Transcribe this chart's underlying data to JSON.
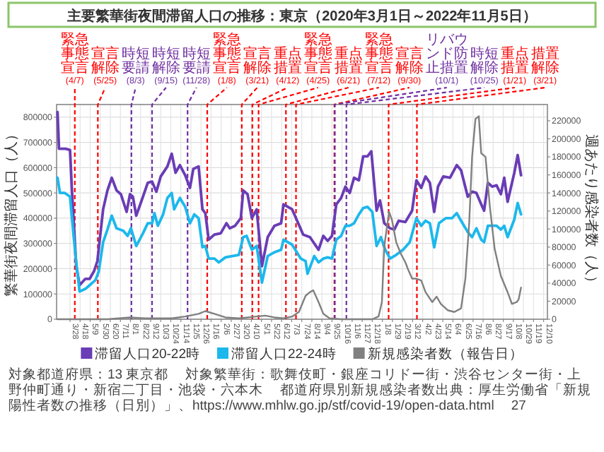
{
  "chart_data": {
    "type": "line",
    "title": "主要繁華街夜間滞留人口の推移：東京（2020年3月1日～2022年11月5日）",
    "ylabel": "繁華街夜間滞留人口（人）",
    "y2label": "週あたり感染者数（人）",
    "xlim": [
      "2020-02-29",
      "2022-12-18"
    ],
    "xticks": [
      {
        "value": "2020-03-28",
        "label": "3/28"
      },
      {
        "value": "2020-04-18",
        "label": "4/18"
      },
      {
        "value": "2020-05-09",
        "label": "5/9"
      },
      {
        "value": "2020-05-30",
        "label": "5/30"
      },
      {
        "value": "2020-06-20",
        "label": "6/20"
      },
      {
        "value": "2020-07-11",
        "label": "7/11"
      },
      {
        "value": "2020-08-01",
        "label": "8/1"
      },
      {
        "value": "2020-08-22",
        "label": "8/22"
      },
      {
        "value": "2020-09-12",
        "label": "9/12"
      },
      {
        "value": "2020-10-03",
        "label": "10/3"
      },
      {
        "value": "2020-10-24",
        "label": "10/24"
      },
      {
        "value": "2020-11-14",
        "label": "11/14"
      },
      {
        "value": "2020-12-05",
        "label": "12/5"
      },
      {
        "value": "2020-12-26",
        "label": "12/26"
      },
      {
        "value": "2021-01-16",
        "label": "1/16"
      },
      {
        "value": "2021-02-06",
        "label": "2/6"
      },
      {
        "value": "2021-02-27",
        "label": "2/27"
      },
      {
        "value": "2021-03-20",
        "label": "3/20"
      },
      {
        "value": "2021-04-10",
        "label": "4/10"
      },
      {
        "value": "2021-05-01",
        "label": "5/1"
      },
      {
        "value": "2021-05-22",
        "label": "5/22"
      },
      {
        "value": "2021-06-12",
        "label": "6/12"
      },
      {
        "value": "2021-07-03",
        "label": "7/3"
      },
      {
        "value": "2021-07-24",
        "label": "7/24"
      },
      {
        "value": "2021-08-14",
        "label": "8/14"
      },
      {
        "value": "2021-09-04",
        "label": "9/4"
      },
      {
        "value": "2021-09-25",
        "label": "9/25"
      },
      {
        "value": "2021-10-16",
        "label": "10/16"
      },
      {
        "value": "2021-11-06",
        "label": "11/6"
      },
      {
        "value": "2021-11-27",
        "label": "11/27"
      },
      {
        "value": "2021-12-18",
        "label": "12/18"
      },
      {
        "value": "2022-01-08",
        "label": "1/8"
      },
      {
        "value": "2022-01-29",
        "label": "1/29"
      },
      {
        "value": "2022-02-19",
        "label": "2/19"
      },
      {
        "value": "2022-03-12",
        "label": "3/12"
      },
      {
        "value": "2022-04-02",
        "label": "4/2"
      },
      {
        "value": "2022-04-23",
        "label": "4/23"
      },
      {
        "value": "2022-05-14",
        "label": "5/14"
      },
      {
        "value": "2022-06-04",
        "label": "6/4"
      },
      {
        "value": "2022-06-25",
        "label": "6/25"
      },
      {
        "value": "2022-07-16",
        "label": "7/16"
      },
      {
        "value": "2022-08-06",
        "label": "8/6"
      },
      {
        "value": "2022-08-27",
        "label": "8/27"
      },
      {
        "value": "2022-09-17",
        "label": "9/17"
      },
      {
        "value": "2022-10-08",
        "label": "10/8"
      },
      {
        "value": "2022-10-29",
        "label": "10/29"
      },
      {
        "value": "2022-11-19",
        "label": "11/19"
      },
      {
        "value": "2022-12-10",
        "label": "12/10"
      }
    ],
    "ylim": [
      0,
      850000
    ],
    "yticks": [
      0,
      100000,
      200000,
      300000,
      400000,
      500000,
      600000,
      700000,
      800000
    ],
    "y2lim": [
      0,
      238000
    ],
    "y2ticks": [
      0,
      20000,
      40000,
      60000,
      80000,
      100000,
      120000,
      140000,
      160000,
      180000,
      200000,
      220000
    ],
    "grid": true,
    "legend": "bottom",
    "series": [
      {
        "name": "滞留人口20-22時",
        "color": "#6a3cb5",
        "x": [
          "2020-03-02",
          "2020-03-05",
          "2020-03-19",
          "2020-03-28",
          "2020-04-01",
          "2020-04-10",
          "2020-04-17",
          "2020-04-29",
          "2020-05-08",
          "2020-05-17",
          "2020-05-24",
          "2020-06-05",
          "2020-06-14",
          "2020-06-23",
          "2020-07-03",
          "2020-07-12",
          "2020-07-24",
          "2020-07-31",
          "2020-08-06",
          "2020-08-13",
          "2020-08-27",
          "2020-09-06",
          "2020-09-15",
          "2020-09-24",
          "2020-10-03",
          "2020-10-17",
          "2020-10-26",
          "2020-11-03",
          "2020-11-12",
          "2020-11-23",
          "2020-12-03",
          "2020-12-10",
          "2020-12-21",
          "2020-12-29",
          "2021-01-04",
          "2021-01-11",
          "2021-01-23",
          "2021-02-05",
          "2021-02-17",
          "2021-02-24",
          "2021-03-07",
          "2021-03-19",
          "2021-03-24",
          "2021-04-02",
          "2021-04-11",
          "2021-04-21",
          "2021-05-02",
          "2021-05-14",
          "2021-05-28",
          "2021-06-11",
          "2021-06-16",
          "2021-07-04",
          "2021-07-27",
          "2021-08-10",
          "2021-08-28",
          "2021-09-07",
          "2021-09-16",
          "2021-09-25",
          "2021-10-04",
          "2021-10-14",
          "2021-10-23",
          "2021-11-01",
          "2021-11-10",
          "2021-11-20",
          "2021-11-29",
          "2021-12-08",
          "2021-12-16",
          "2021-12-27",
          "2022-01-03",
          "2022-01-12",
          "2022-01-24",
          "2022-02-02",
          "2022-02-11",
          "2022-02-25",
          "2022-03-11",
          "2022-03-20",
          "2022-03-30",
          "2022-04-08",
          "2022-04-17",
          "2022-04-26",
          "2022-05-04",
          "2022-05-15",
          "2022-05-29",
          "2022-06-12",
          "2022-06-21",
          "2022-07-05",
          "2022-07-14",
          "2022-07-23",
          "2022-08-02",
          "2022-08-08",
          "2022-08-16",
          "2022-08-25",
          "2022-09-03",
          "2022-09-12",
          "2022-09-19",
          "2022-09-26",
          "2022-10-10",
          "2022-10-17",
          "2022-10-24"
        ],
        "values": [
          820000,
          675000,
          675000,
          670000,
          510000,
          210000,
          135000,
          160000,
          160000,
          190000,
          230000,
          435000,
          510000,
          560000,
          510000,
          495000,
          425000,
          495000,
          485000,
          410000,
          485000,
          540000,
          545000,
          505000,
          565000,
          605000,
          655000,
          580000,
          610000,
          570000,
          520000,
          595000,
          605000,
          435000,
          420000,
          315000,
          335000,
          340000,
          380000,
          360000,
          370000,
          400000,
          510000,
          495000,
          400000,
          435000,
          210000,
          325000,
          370000,
          380000,
          455000,
          435000,
          335000,
          325000,
          275000,
          330000,
          310000,
          330000,
          455000,
          480000,
          525000,
          500000,
          560000,
          550000,
          645000,
          645000,
          665000,
          430000,
          470000,
          380000,
          360000,
          355000,
          390000,
          385000,
          430000,
          550000,
          520000,
          565000,
          540000,
          425000,
          525000,
          565000,
          560000,
          610000,
          590000,
          485000,
          505000,
          500000,
          455000,
          430000,
          540000,
          525000,
          530000,
          495000,
          560000,
          465000,
          580000,
          650000,
          570000
        ]
      },
      {
        "name": "滞留人口22-24時",
        "color": "#1cb8ec",
        "x": [
          "2020-03-02",
          "2020-03-07",
          "2020-03-17",
          "2020-03-28",
          "2020-04-04",
          "2020-04-10",
          "2020-04-17",
          "2020-04-29",
          "2020-05-08",
          "2020-05-20",
          "2020-05-27",
          "2020-06-05",
          "2020-06-14",
          "2020-06-23",
          "2020-07-03",
          "2020-07-17",
          "2020-07-26",
          "2020-08-02",
          "2020-08-13",
          "2020-08-27",
          "2020-09-06",
          "2020-09-15",
          "2020-09-20",
          "2020-09-27",
          "2020-10-08",
          "2020-10-17",
          "2020-10-26",
          "2020-10-31",
          "2020-11-12",
          "2020-11-23",
          "2020-12-03",
          "2020-12-12",
          "2020-12-21",
          "2020-12-29",
          "2021-01-04",
          "2021-01-11",
          "2021-01-23",
          "2021-02-01",
          "2021-02-15",
          "2021-03-01",
          "2021-03-15",
          "2021-03-24",
          "2021-03-31",
          "2021-04-11",
          "2021-04-21",
          "2021-05-02",
          "2021-05-14",
          "2021-05-28",
          "2021-06-11",
          "2021-06-16",
          "2021-07-04",
          "2021-07-22",
          "2021-08-01",
          "2021-08-05",
          "2021-08-19",
          "2021-08-28",
          "2021-09-07",
          "2021-09-16",
          "2021-09-25",
          "2021-10-04",
          "2021-10-14",
          "2021-10-23",
          "2021-11-01",
          "2021-11-10",
          "2021-11-20",
          "2021-11-29",
          "2021-12-08",
          "2021-12-18",
          "2021-12-27",
          "2022-01-05",
          "2022-01-14",
          "2022-01-24",
          "2022-02-06",
          "2022-02-20",
          "2022-03-06",
          "2022-03-20",
          "2022-03-30",
          "2022-04-08",
          "2022-04-17",
          "2022-04-26",
          "2022-05-06",
          "2022-05-20",
          "2022-06-02",
          "2022-06-12",
          "2022-06-21",
          "2022-07-05",
          "2022-07-14",
          "2022-07-23",
          "2022-08-02",
          "2022-08-08",
          "2022-08-16",
          "2022-09-03",
          "2022-09-12",
          "2022-09-19",
          "2022-09-26",
          "2022-10-10",
          "2022-10-17",
          "2022-10-24"
        ],
        "values": [
          560000,
          500000,
          500000,
          485000,
          340000,
          225000,
          110000,
          120000,
          135000,
          155000,
          190000,
          305000,
          355000,
          410000,
          360000,
          350000,
          330000,
          360000,
          290000,
          340000,
          380000,
          380000,
          420000,
          370000,
          415000,
          480000,
          500000,
          435000,
          480000,
          445000,
          380000,
          415000,
          400000,
          285000,
          290000,
          240000,
          240000,
          225000,
          245000,
          250000,
          255000,
          325000,
          330000,
          275000,
          290000,
          145000,
          250000,
          265000,
          275000,
          315000,
          295000,
          240000,
          230000,
          180000,
          250000,
          225000,
          240000,
          245000,
          240000,
          315000,
          330000,
          370000,
          370000,
          380000,
          415000,
          440000,
          445000,
          425000,
          290000,
          325000,
          275000,
          240000,
          255000,
          275000,
          305000,
          400000,
          370000,
          390000,
          380000,
          285000,
          380000,
          400000,
          400000,
          420000,
          390000,
          345000,
          325000,
          360000,
          315000,
          305000,
          370000,
          370000,
          355000,
          370000,
          325000,
          395000,
          460000,
          415000
        ]
      },
      {
        "name": "新規感染者数（報告日）",
        "color": "#808080",
        "axis": "y2",
        "x": [
          "2020-03-02",
          "2020-06-14",
          "2020-07-31",
          "2020-09-01",
          "2020-10-26",
          "2020-11-23",
          "2020-12-21",
          "2021-01-04",
          "2021-01-23",
          "2021-02-15",
          "2021-03-15",
          "2021-04-21",
          "2021-05-09",
          "2021-05-28",
          "2021-06-16",
          "2021-07-04",
          "2021-07-18",
          "2021-08-01",
          "2021-08-10",
          "2021-08-17",
          "2021-08-28",
          "2021-09-07",
          "2021-09-20",
          "2021-10-14",
          "2021-12-18",
          "2021-12-31",
          "2022-01-07",
          "2022-01-12",
          "2022-01-22",
          "2022-01-28",
          "2022-02-06",
          "2022-02-16",
          "2022-02-25",
          "2022-03-02",
          "2022-03-11",
          "2022-03-20",
          "2022-03-30",
          "2022-04-08",
          "2022-04-22",
          "2022-05-01",
          "2022-05-10",
          "2022-05-24",
          "2022-06-07",
          "2022-06-21",
          "2022-06-30",
          "2022-07-08",
          "2022-07-14",
          "2022-07-21",
          "2022-07-28",
          "2022-08-02",
          "2022-08-11",
          "2022-08-20",
          "2022-08-30",
          "2022-09-12",
          "2022-09-26",
          "2022-10-05",
          "2022-10-15",
          "2022-10-19",
          "2022-10-24"
        ],
        "values": [
          0,
          0,
          2000,
          1000,
          1000,
          3000,
          6000,
          9000,
          6000,
          2000,
          1000,
          3000,
          4000,
          2000,
          1000,
          3000,
          8000,
          26000,
          30000,
          32000,
          19000,
          6000,
          1000,
          0,
          0,
          3000,
          19000,
          81000,
          119000,
          110000,
          85000,
          72000,
          63000,
          56000,
          45000,
          45000,
          43000,
          30000,
          19000,
          25000,
          17000,
          10000,
          8000,
          12000,
          45000,
          107000,
          180000,
          222000,
          225000,
          184000,
          180000,
          125000,
          78000,
          48000,
          30000,
          17000,
          19000,
          22000,
          35000
        ]
      }
    ],
    "ref_lines": [
      {
        "axis": "x",
        "value": "2020-04-07",
        "label": "緊急事態宣言(4/7)",
        "color": "#ff0000",
        "line_style": "dashed"
      },
      {
        "axis": "x",
        "value": "2020-05-25",
        "label": "宣言解除(5/25)",
        "color": "#ff0000",
        "line_style": "dashed"
      },
      {
        "axis": "x",
        "value": "2020-08-03",
        "label": "時短要請(8/3)",
        "color": "#7030a0",
        "line_style": "dashed"
      },
      {
        "axis": "x",
        "value": "2020-09-15",
        "label": "時短解除(9/15)",
        "color": "#7030a0",
        "line_style": "dashed"
      },
      {
        "axis": "x",
        "value": "2020-11-28",
        "label": "時短要請(11/28)",
        "color": "#7030a0",
        "line_style": "dashed"
      },
      {
        "axis": "x",
        "value": "2021-01-08",
        "label": "緊急事態宣言(1/8)",
        "color": "#ff0000",
        "line_style": "dashed"
      },
      {
        "axis": "x",
        "value": "2021-03-21",
        "label": "宣言解除(3/21)",
        "color": "#ff0000",
        "line_style": "dashed"
      },
      {
        "axis": "x",
        "value": "2021-04-12",
        "label": "重点措置(4/12)",
        "color": "#ff0000",
        "line_style": "dashed"
      },
      {
        "axis": "x",
        "value": "2021-04-25",
        "label": "緊急事態宣言(4/25)",
        "color": "#ff0000",
        "line_style": "dashed"
      },
      {
        "axis": "x",
        "value": "2021-06-21",
        "label": "重点措置(6/21)",
        "color": "#ff0000",
        "line_style": "dashed"
      },
      {
        "axis": "x",
        "value": "2021-07-12",
        "label": "緊急事態宣言(7/12)",
        "color": "#ff0000",
        "line_style": "dashed"
      },
      {
        "axis": "x",
        "value": "2021-09-30",
        "label": "宣言解除(9/30)",
        "color": "#ff0000",
        "line_style": "dashed"
      },
      {
        "axis": "x",
        "value": "2021-10-01",
        "label": "リバウンド防止措置(10/1)",
        "color": "#7030a0",
        "line_style": "dashed"
      },
      {
        "axis": "x",
        "value": "2021-10-25",
        "label": "時短解除(10/25)",
        "color": "#7030a0",
        "line_style": "dashed"
      },
      {
        "axis": "x",
        "value": "2022-01-21",
        "label": "重点措置(1/21)",
        "color": "#ff0000",
        "line_style": "dashed"
      },
      {
        "axis": "x",
        "value": "2022-03-21",
        "label": "措置解除(3/21)",
        "color": "#ff0000",
        "line_style": "dashed"
      }
    ],
    "annotations": [
      "対象都道府県：13 東京都",
      "対象繁華街：歌舞伎町・銀座コリドー街・渋谷センター街・上野仲町通り・新宿二丁目・池袋・六本木",
      "都道府県別新規感染者数出典：厚生労働省「新規陽性者数の推移（日別）」、https://www.mhlw.go.jp/stf/covid-19/open-data.html",
      "27"
    ]
  }
}
